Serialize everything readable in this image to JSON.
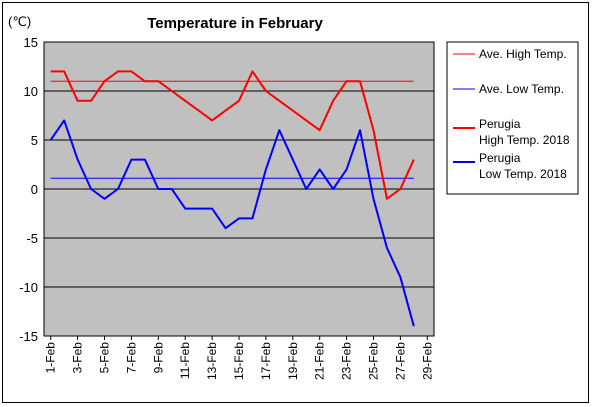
{
  "chart_data": {
    "type": "line",
    "title": "Temperature in February",
    "unit_label": "(℃)",
    "ylim": [
      -15,
      15
    ],
    "y_ticks": [
      "15",
      "10",
      "5",
      "0",
      "-5",
      "-10",
      "-15"
    ],
    "y_tick_values": [
      15,
      10,
      5,
      0,
      -5,
      -10,
      -15
    ],
    "x_tick_labels": [
      "1-Feb",
      "3-Feb",
      "5-Feb",
      "7-Feb",
      "9-Feb",
      "11-Feb",
      "13-Feb",
      "15-Feb",
      "17-Feb",
      "19-Feb",
      "21-Feb",
      "23-Feb",
      "25-Feb",
      "27-Feb",
      "29-Feb"
    ],
    "x_days": [
      1,
      2,
      3,
      4,
      5,
      6,
      7,
      8,
      9,
      10,
      11,
      12,
      13,
      14,
      15,
      16,
      17,
      18,
      19,
      20,
      21,
      22,
      23,
      24,
      25,
      26,
      27,
      28
    ],
    "grid": true,
    "legend_position": "right",
    "plot_background": "#c0c0c0",
    "series": [
      {
        "name": "Ave. High Temp.",
        "color": "#ff0000",
        "width": 1,
        "values": [
          11,
          11,
          11,
          11,
          11,
          11,
          11,
          11,
          11,
          11,
          11,
          11,
          11,
          11,
          11,
          11,
          11,
          11,
          11,
          11,
          11,
          11,
          11,
          11,
          11,
          11,
          11,
          11
        ]
      },
      {
        "name": "Ave. Low Temp.",
        "color": "#0000ff",
        "width": 1,
        "values": [
          1.1,
          1.1,
          1.1,
          1.1,
          1.1,
          1.1,
          1.1,
          1.1,
          1.1,
          1.1,
          1.1,
          1.1,
          1.1,
          1.1,
          1.1,
          1.1,
          1.1,
          1.1,
          1.1,
          1.1,
          1.1,
          1.1,
          1.1,
          1.1,
          1.1,
          1.1,
          1.1,
          1.1
        ]
      },
      {
        "name": "Perugia High Temp. 2018",
        "legend_lines": [
          "Perugia",
          "High Temp. 2018"
        ],
        "color": "#ff0000",
        "width": 2,
        "values": [
          12,
          12,
          9,
          9,
          11,
          12,
          12,
          11,
          11,
          10,
          9,
          8,
          7,
          8,
          9,
          12,
          10,
          9,
          8,
          7,
          6,
          9,
          11,
          11,
          6,
          -1,
          0,
          3
        ]
      },
      {
        "name": "Perugia Low Temp. 2018",
        "legend_lines": [
          "Perugia",
          "Low Temp. 2018"
        ],
        "color": "#0000ff",
        "width": 2,
        "values": [
          5,
          7,
          3,
          0,
          -1,
          0,
          3,
          3,
          0,
          0,
          -2,
          -2,
          -2,
          -4,
          -3,
          -3,
          2,
          6,
          3,
          0,
          2,
          0,
          2,
          6,
          -1,
          -6,
          -9,
          -14
        ]
      }
    ]
  }
}
